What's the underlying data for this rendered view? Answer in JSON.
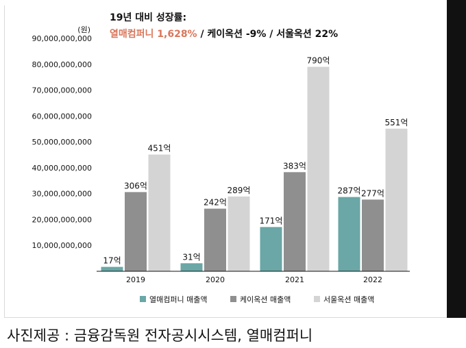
{
  "colors": {
    "series1": "#6aa7a6",
    "series2": "#8f8f8f",
    "series3": "#d4d4d4",
    "headline_accent": "#d9765a",
    "text": "#111111",
    "frame": "#111111"
  },
  "headline": {
    "line1": "19년 대비 성장률:",
    "part_accent": "열매컴퍼니 1,628%",
    "part_rest": " / 케이옥션 -9% / 서울옥션 22%"
  },
  "caption": "사진제공 : 금융감독원 전자공시시스템, 열매컴퍼니",
  "chart_data": {
    "type": "bar",
    "unit_label": "(원)",
    "categories": [
      "2019",
      "2020",
      "2021",
      "2022"
    ],
    "ylim": [
      0,
      90000000000
    ],
    "yticks": [
      {
        "value": 10000000000,
        "label": "10,000,000,000"
      },
      {
        "value": 20000000000,
        "label": "20,000,000,000"
      },
      {
        "value": 30000000000,
        "label": "30,000,000,000"
      },
      {
        "value": 40000000000,
        "label": "40,000,000,000"
      },
      {
        "value": 50000000000,
        "label": "50,000,000,000"
      },
      {
        "value": 60000000000,
        "label": "60,000,000,000"
      },
      {
        "value": 70000000000,
        "label": "70,000,000,000"
      },
      {
        "value": 80000000000,
        "label": "80,000,000,000"
      },
      {
        "value": 90000000000,
        "label": "90,000,000,000"
      }
    ],
    "grid": false,
    "legend_position": "bottom",
    "series": [
      {
        "name": "열매컴퍼니 매출액",
        "color": "#6aa7a6",
        "values": [
          1700000000,
          3100000000,
          17100000000,
          28700000000
        ],
        "labels": [
          "17억",
          "31억",
          "171억",
          "287억"
        ]
      },
      {
        "name": "케이옥션 매출액",
        "color": "#8f8f8f",
        "values": [
          30600000000,
          24200000000,
          38300000000,
          27700000000
        ],
        "labels": [
          "306억",
          "242억",
          "383억",
          "277억"
        ]
      },
      {
        "name": "서울옥션 매출액",
        "color": "#d4d4d4",
        "values": [
          45100000000,
          28900000000,
          79000000000,
          55100000000
        ],
        "labels": [
          "451억",
          "289억",
          "790억",
          "551억"
        ]
      }
    ]
  }
}
